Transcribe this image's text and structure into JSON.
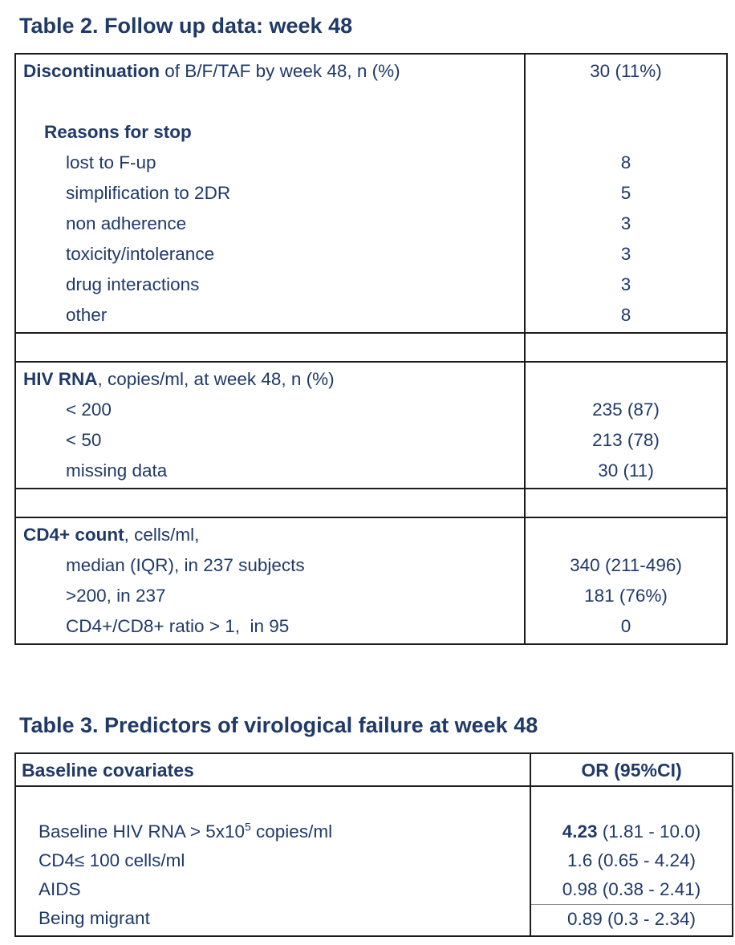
{
  "colors": {
    "text_navy": "#1f3a68",
    "border": "#1c1c1c",
    "thin_line": "#8f8f8f"
  },
  "table2": {
    "title": "Table 2. Follow up data: week 48",
    "sections": [
      {
        "rows": [
          {
            "b": "Discontinuation",
            "t": " of B/F/TAF by week 48, n (%)",
            "v": "30 (11%)"
          },
          {
            "b": "",
            "t": "",
            "v": ""
          },
          {
            "b": "Reasons for stop",
            "t": "",
            "v": ""
          },
          {
            "b": "",
            "t": "lost to F-up",
            "v": "8"
          },
          {
            "b": "",
            "t": "simplification to 2DR",
            "v": "5"
          },
          {
            "b": "",
            "t": "non adherence",
            "v": "3"
          },
          {
            "b": "",
            "t": "toxicity/intolerance",
            "v": "3"
          },
          {
            "b": "",
            "t": "drug interactions",
            "v": "3"
          },
          {
            "b": "",
            "t": "other",
            "v": "8"
          }
        ]
      },
      {
        "rows": [
          {
            "b": "HIV RNA",
            "t": ", copies/ml, at week 48, n (%)",
            "v": ""
          },
          {
            "b": "",
            "t": "< 200",
            "v": "235 (87)"
          },
          {
            "b": "",
            "t": "< 50",
            "v": "213 (78)"
          },
          {
            "b": "",
            "t": "missing data",
            "v": "30 (11)"
          }
        ]
      },
      {
        "rows": [
          {
            "b": "CD4+ count",
            "t": ", cells/ml,",
            "v": ""
          },
          {
            "b": "",
            "t": "median (IQR), in 237 subjects",
            "v": "340 (211-496)"
          },
          {
            "b": "",
            "t": ">200, in 237",
            "v": "181 (76%)"
          },
          {
            "b": "",
            "t": "CD4+/CD8+ ratio > 1,  in 95",
            "v": "0"
          }
        ]
      }
    ]
  },
  "table3": {
    "title": "Table 3. Predictors of virological failure at week 48",
    "header": {
      "left": "Baseline covariates",
      "right": "OR (95%CI)"
    },
    "rows": [
      {
        "t1": "",
        "sup": "",
        "t2": "",
        "vb": "",
        "vt": ""
      },
      {
        "t1": "Baseline HIV RNA > 5x10",
        "sup": "5",
        "t2": " copies/ml",
        "vb": "4.23",
        "vt": " (1.81 - 10.0)"
      },
      {
        "t1": "CD4≤ 100 cells/ml",
        "sup": "",
        "t2": "",
        "vb": "",
        "vt": "1.6 (0.65 - 4.24)"
      },
      {
        "t1": "AIDS",
        "sup": "",
        "t2": "",
        "vb": "",
        "vt": "0.98 (0.38 - 2.41)"
      },
      {
        "t1": "Being migrant",
        "sup": "",
        "t2": "",
        "vb": "",
        "vt": "0.89 (0.3 - 2.34)"
      }
    ]
  }
}
